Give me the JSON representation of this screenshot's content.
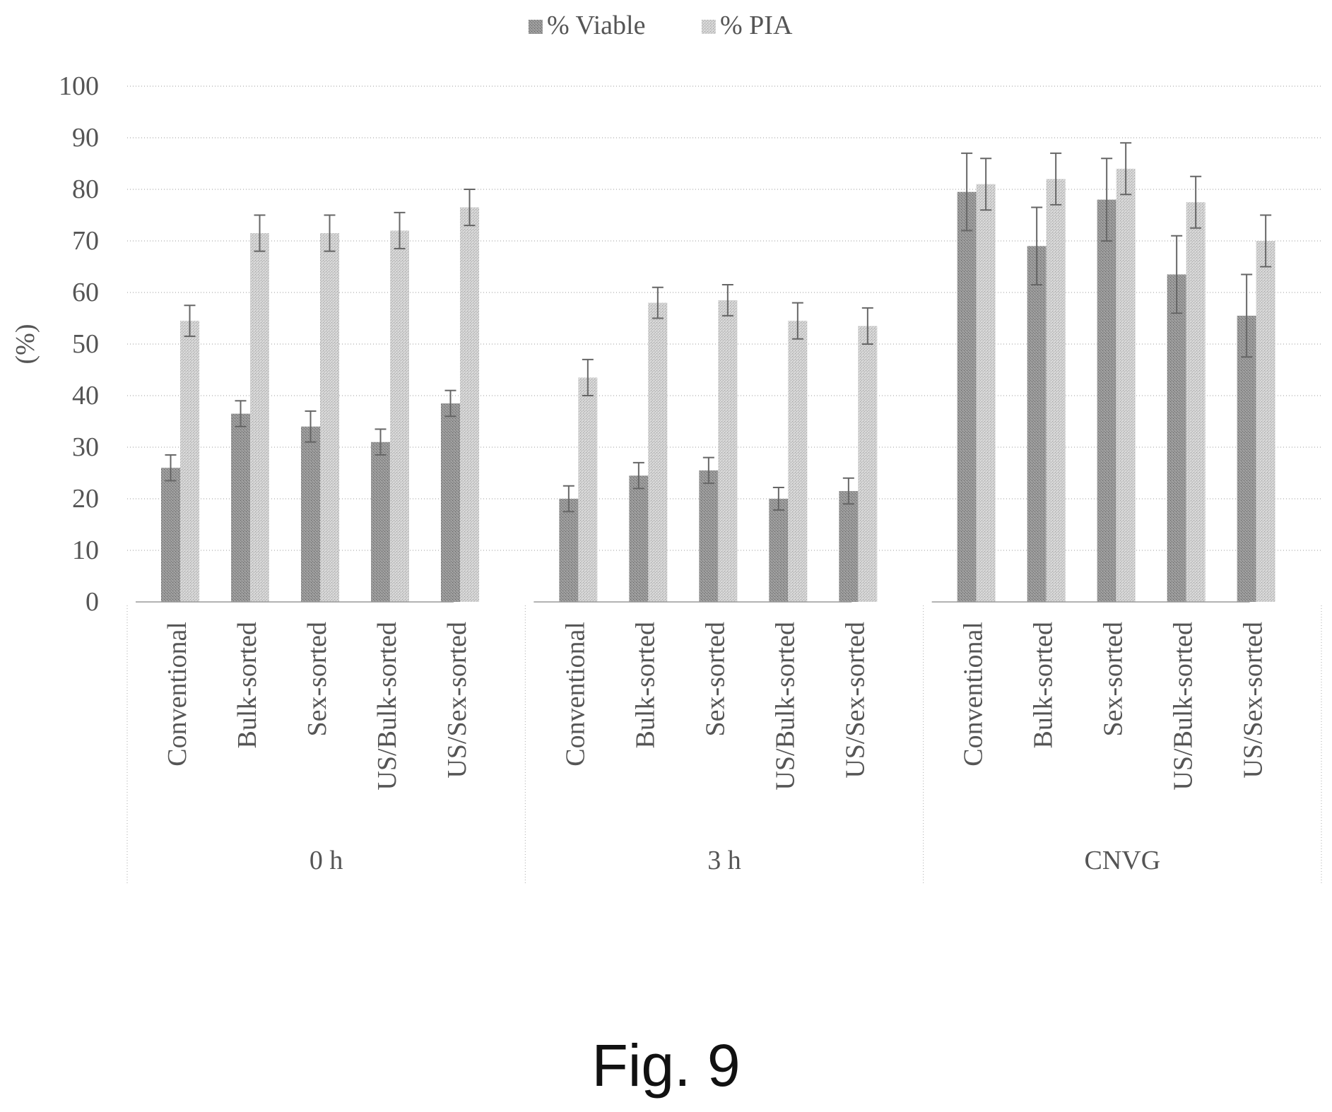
{
  "figure_caption": "Fig. 9",
  "chart_data": {
    "type": "bar",
    "ylabel": "(%)",
    "ylim": [
      0,
      100
    ],
    "yticks": [
      0,
      10,
      20,
      30,
      40,
      50,
      60,
      70,
      80,
      90,
      100
    ],
    "grid": true,
    "legend_position": "top",
    "groups": [
      "0 h",
      "3 h",
      "CNVG"
    ],
    "categories": [
      "Conventional",
      "Bulk-sorted",
      "Sex-sorted",
      "US/Bulk-sorted",
      "US/Sex-sorted"
    ],
    "series": [
      {
        "name": "% Viable",
        "color": "#8a8a8a",
        "values": [
          [
            26,
            36.5,
            34,
            31,
            38.5
          ],
          [
            20,
            24.5,
            25.5,
            20,
            21.5
          ],
          [
            79.5,
            69,
            78,
            63.5,
            55.5
          ]
        ],
        "errors": [
          [
            2.5,
            2.5,
            3,
            2.5,
            2.5
          ],
          [
            2.5,
            2.5,
            2.5,
            2.2,
            2.5
          ],
          [
            7.5,
            7.5,
            8,
            7.5,
            8
          ]
        ]
      },
      {
        "name": "% PIA",
        "color": "#c4c4c4",
        "values": [
          [
            54.5,
            71.5,
            71.5,
            72,
            76.5
          ],
          [
            43.5,
            58,
            58.5,
            54.5,
            53.5
          ],
          [
            81,
            82,
            84,
            77.5,
            70
          ]
        ],
        "errors": [
          [
            3,
            3.5,
            3.5,
            3.5,
            3.5
          ],
          [
            3.5,
            3,
            3,
            3.5,
            3.5
          ],
          [
            5,
            5,
            5,
            5,
            5
          ]
        ]
      }
    ]
  }
}
